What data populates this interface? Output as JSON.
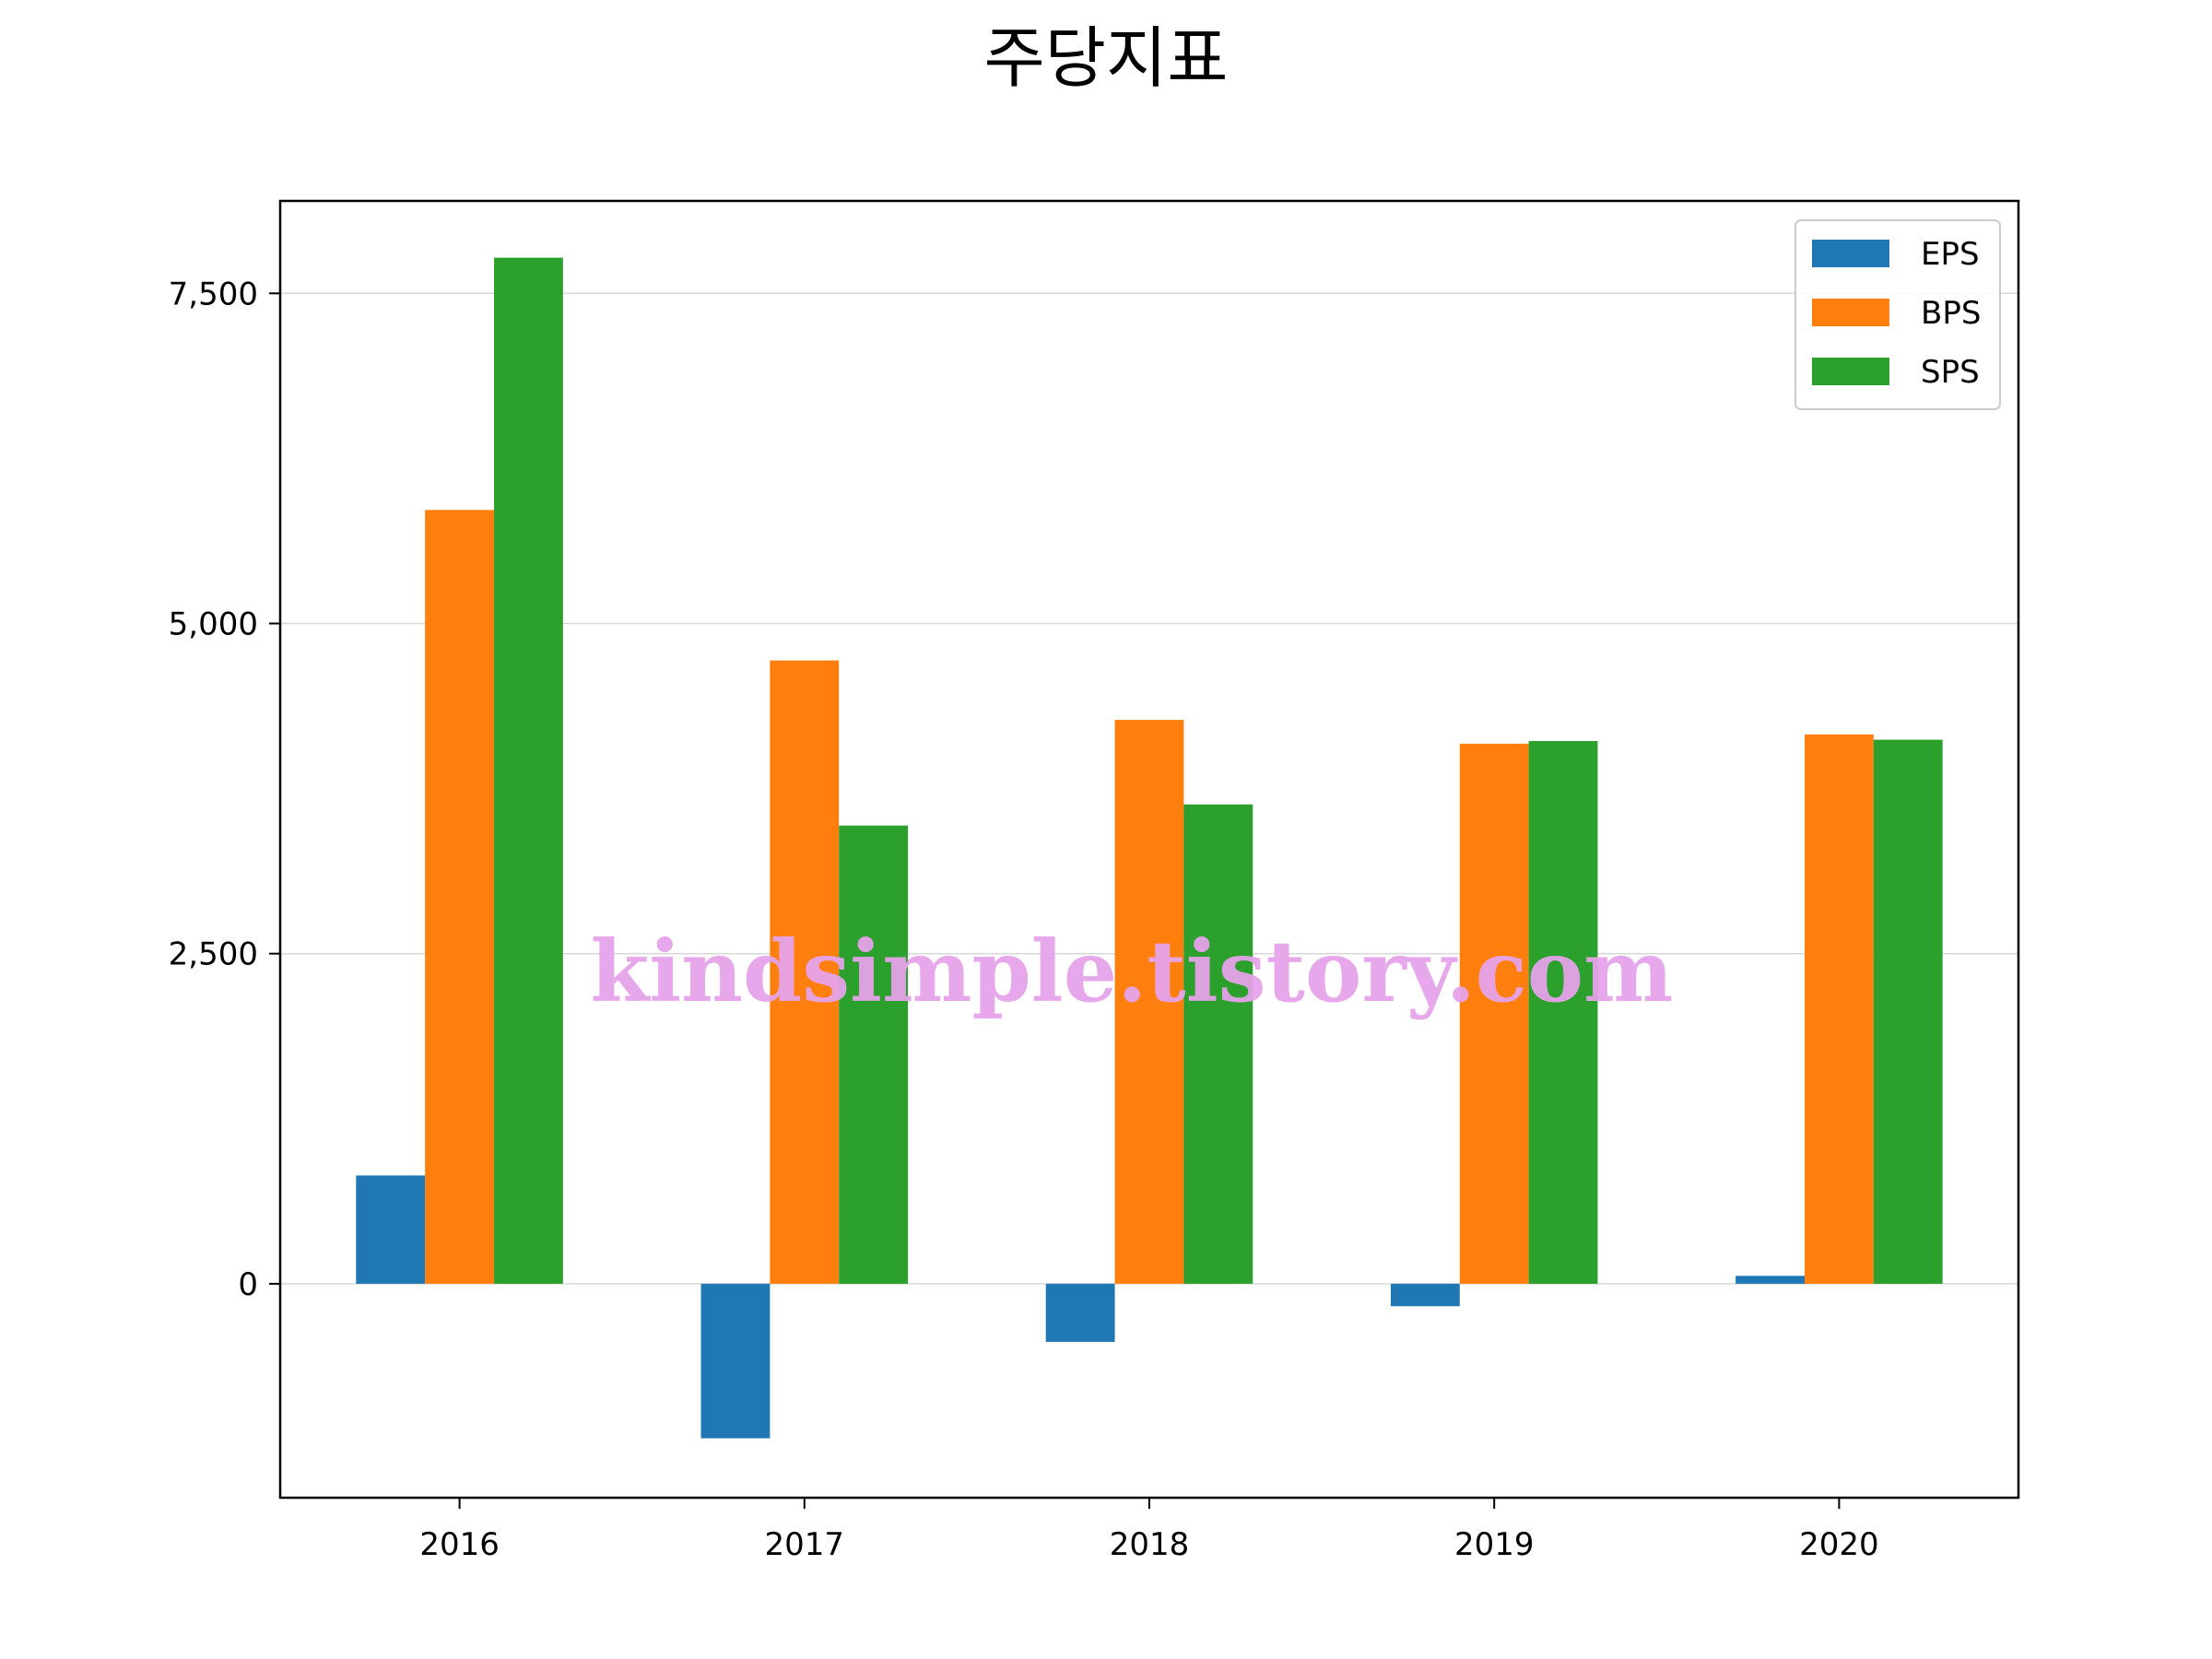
{
  "chart_data": {
    "type": "bar",
    "title": "주당지표",
    "categories": [
      "2016",
      "2017",
      "2018",
      "2019",
      "2020"
    ],
    "series": [
      {
        "name": "EPS",
        "color": "#1f77b4",
        "values": [
          820,
          -1170,
          -440,
          -170,
          60
        ]
      },
      {
        "name": "BPS",
        "color": "#ff7f0e",
        "values": [
          5860,
          4720,
          4270,
          4090,
          4160
        ]
      },
      {
        "name": "SPS",
        "color": "#2ca02c",
        "values": [
          7770,
          3470,
          3630,
          4110,
          4120
        ]
      }
    ],
    "ylim": [
      -1620,
      8200
    ],
    "yticks": [
      0,
      2500,
      5000,
      7500
    ],
    "ytick_labels": [
      "0",
      "2,500",
      "5,000",
      "7,500"
    ],
    "grid": "horizontal",
    "legend_position": "top-right"
  },
  "watermark": "kindsimple.tistory.com"
}
